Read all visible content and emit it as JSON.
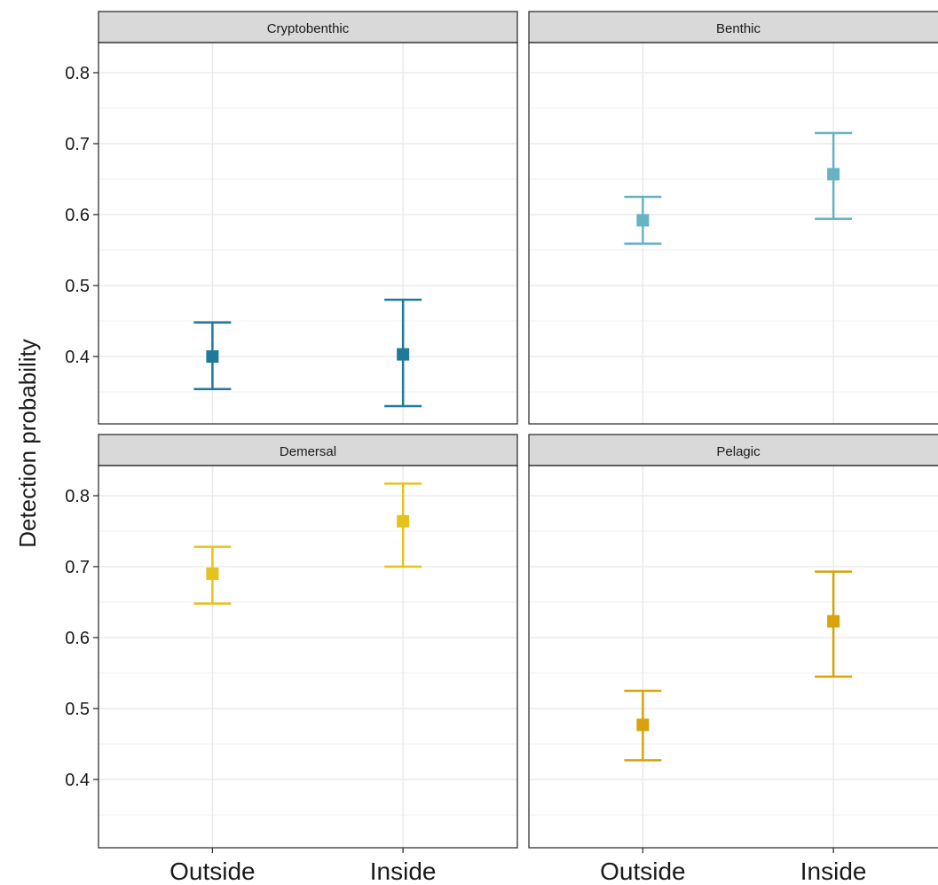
{
  "chart_data": {
    "type": "scatter",
    "facet_layout": "2x2",
    "ylabel": "Detection probability",
    "xlabel": "",
    "categories": [
      "Outside",
      "Inside"
    ],
    "ylim": [
      0.3,
      0.88
    ],
    "y_ticks": [
      "0.4",
      "0.5",
      "0.6",
      "0.7",
      "0.8"
    ],
    "grid": true,
    "marker": "square",
    "panels": [
      {
        "title": "Cryptobenthic",
        "color": "#1f7a99",
        "points": [
          {
            "x": "Outside",
            "y": 0.4,
            "ymin": 0.354,
            "ymax": 0.448
          },
          {
            "x": "Inside",
            "y": 0.403,
            "ymin": 0.33,
            "ymax": 0.48
          }
        ]
      },
      {
        "title": "Benthic",
        "color": "#67b3c4",
        "points": [
          {
            "x": "Outside",
            "y": 0.592,
            "ymin": 0.559,
            "ymax": 0.625
          },
          {
            "x": "Inside",
            "y": 0.657,
            "ymin": 0.594,
            "ymax": 0.715
          }
        ]
      },
      {
        "title": "Demersal",
        "color": "#e6c21c",
        "points": [
          {
            "x": "Outside",
            "y": 0.69,
            "ymin": 0.648,
            "ymax": 0.728
          },
          {
            "x": "Inside",
            "y": 0.764,
            "ymin": 0.7,
            "ymax": 0.817
          }
        ]
      },
      {
        "title": "Pelagic",
        "color": "#d9a20c",
        "points": [
          {
            "x": "Outside",
            "y": 0.477,
            "ymin": 0.427,
            "ymax": 0.525
          },
          {
            "x": "Inside",
            "y": 0.623,
            "ymin": 0.545,
            "ymax": 0.693
          }
        ]
      }
    ]
  }
}
